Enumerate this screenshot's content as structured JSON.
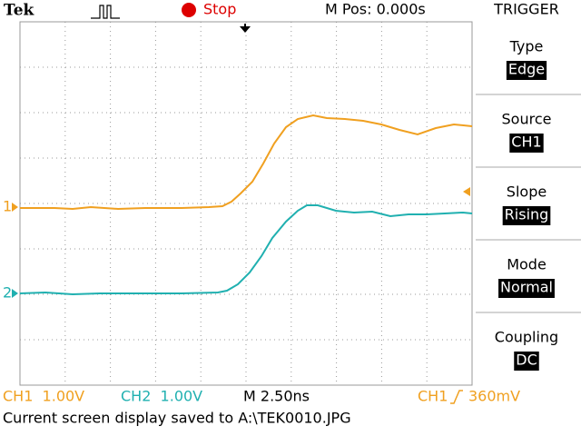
{
  "header": {
    "brand": "Tek",
    "status": "Stop",
    "position": "M Pos: 0.000s",
    "menu_title": "TRIGGER"
  },
  "menu": [
    {
      "label": "Type",
      "value": "Edge"
    },
    {
      "label": "Source",
      "value": "CH1"
    },
    {
      "label": "Slope",
      "value": "Rising"
    },
    {
      "label": "Mode",
      "value": "Normal"
    },
    {
      "label": "Coupling",
      "value": "DC"
    }
  ],
  "markers": {
    "ch1": "1",
    "ch2": "2"
  },
  "footer": {
    "ch1_scale": "CH1  1.00V",
    "ch2_scale": "CH2  1.00V",
    "timebase": "M 2.50ns",
    "trigger_source": "CH1",
    "trigger_level": "360mV",
    "message": "Current screen display saved to A:\\TEK0010.JPG"
  }
}
